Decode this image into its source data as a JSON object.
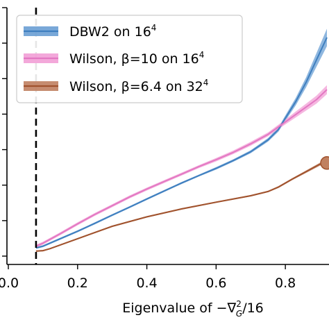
{
  "chart_data": {
    "type": "line",
    "xlabel_prefix": "Eigenvalue of −∇",
    "xlabel_sup": "2",
    "xlabel_sub": "G",
    "xlabel_suffix": "/16",
    "xlim": [
      0.0,
      0.92
    ],
    "ylim": [
      0.0,
      1.0
    ],
    "x_ticks": [
      0.0,
      0.2,
      0.4,
      0.6,
      0.8
    ],
    "x_tick_labels": [
      "0.0",
      "0.2",
      "0.4",
      "0.6",
      "0.8"
    ],
    "y_tick_count": 8,
    "vline_x": 0.08,
    "legend_position": "top-left",
    "series": [
      {
        "name": "DBW2 on 16",
        "name_sup": "4",
        "color": "#3f7fbf",
        "band_color": "#6a9fd4",
        "x": [
          0.08,
          0.1,
          0.15,
          0.2,
          0.25,
          0.3,
          0.35,
          0.4,
          0.45,
          0.5,
          0.55,
          0.6,
          0.65,
          0.7,
          0.75,
          0.78,
          0.8,
          0.83,
          0.86,
          0.88,
          0.9,
          0.92
        ],
        "y": [
          0.033,
          0.04,
          0.07,
          0.1,
          0.132,
          0.165,
          0.197,
          0.23,
          0.262,
          0.294,
          0.324,
          0.353,
          0.385,
          0.42,
          0.468,
          0.51,
          0.555,
          0.622,
          0.7,
          0.76,
          0.82,
          0.88
        ],
        "band": [
          0.004,
          0.004,
          0.004,
          0.004,
          0.004,
          0.004,
          0.004,
          0.004,
          0.004,
          0.004,
          0.004,
          0.005,
          0.005,
          0.006,
          0.007,
          0.009,
          0.011,
          0.015,
          0.02,
          0.025,
          0.03,
          0.035
        ]
      },
      {
        "name": "Wilson, β=10 on 16",
        "name_sup": "4",
        "color": "#e377c2",
        "band_color": "#f29fd6",
        "x": [
          0.08,
          0.1,
          0.15,
          0.2,
          0.25,
          0.3,
          0.35,
          0.4,
          0.45,
          0.5,
          0.55,
          0.6,
          0.65,
          0.7,
          0.75,
          0.8,
          0.83,
          0.86,
          0.89,
          0.92
        ],
        "y": [
          0.04,
          0.052,
          0.09,
          0.13,
          0.168,
          0.203,
          0.238,
          0.27,
          0.3,
          0.33,
          0.36,
          0.388,
          0.418,
          0.452,
          0.49,
          0.54,
          0.57,
          0.6,
          0.63,
          0.67
        ],
        "band": [
          0.006,
          0.006,
          0.006,
          0.006,
          0.006,
          0.006,
          0.006,
          0.006,
          0.006,
          0.006,
          0.006,
          0.007,
          0.007,
          0.008,
          0.008,
          0.01,
          0.012,
          0.014,
          0.016,
          0.018
        ]
      },
      {
        "name": "Wilson, β=6.4 on 32",
        "name_sup": "4",
        "color": "#a0522d",
        "band_color": "#c08060",
        "x": [
          0.08,
          0.1,
          0.12,
          0.2,
          0.3,
          0.4,
          0.5,
          0.6,
          0.7,
          0.75,
          0.78,
          0.82,
          0.86,
          0.9,
          0.92
        ],
        "y": [
          0.02,
          0.022,
          0.03,
          0.07,
          0.12,
          0.158,
          0.19,
          0.217,
          0.243,
          0.26,
          0.278,
          0.31,
          0.34,
          0.37,
          0.375
        ],
        "band": [
          0.003,
          0.003,
          0.003,
          0.003,
          0.003,
          0.003,
          0.003,
          0.003,
          0.003,
          0.003,
          0.004,
          0.004,
          0.005,
          0.006,
          0.008
        ]
      }
    ]
  }
}
